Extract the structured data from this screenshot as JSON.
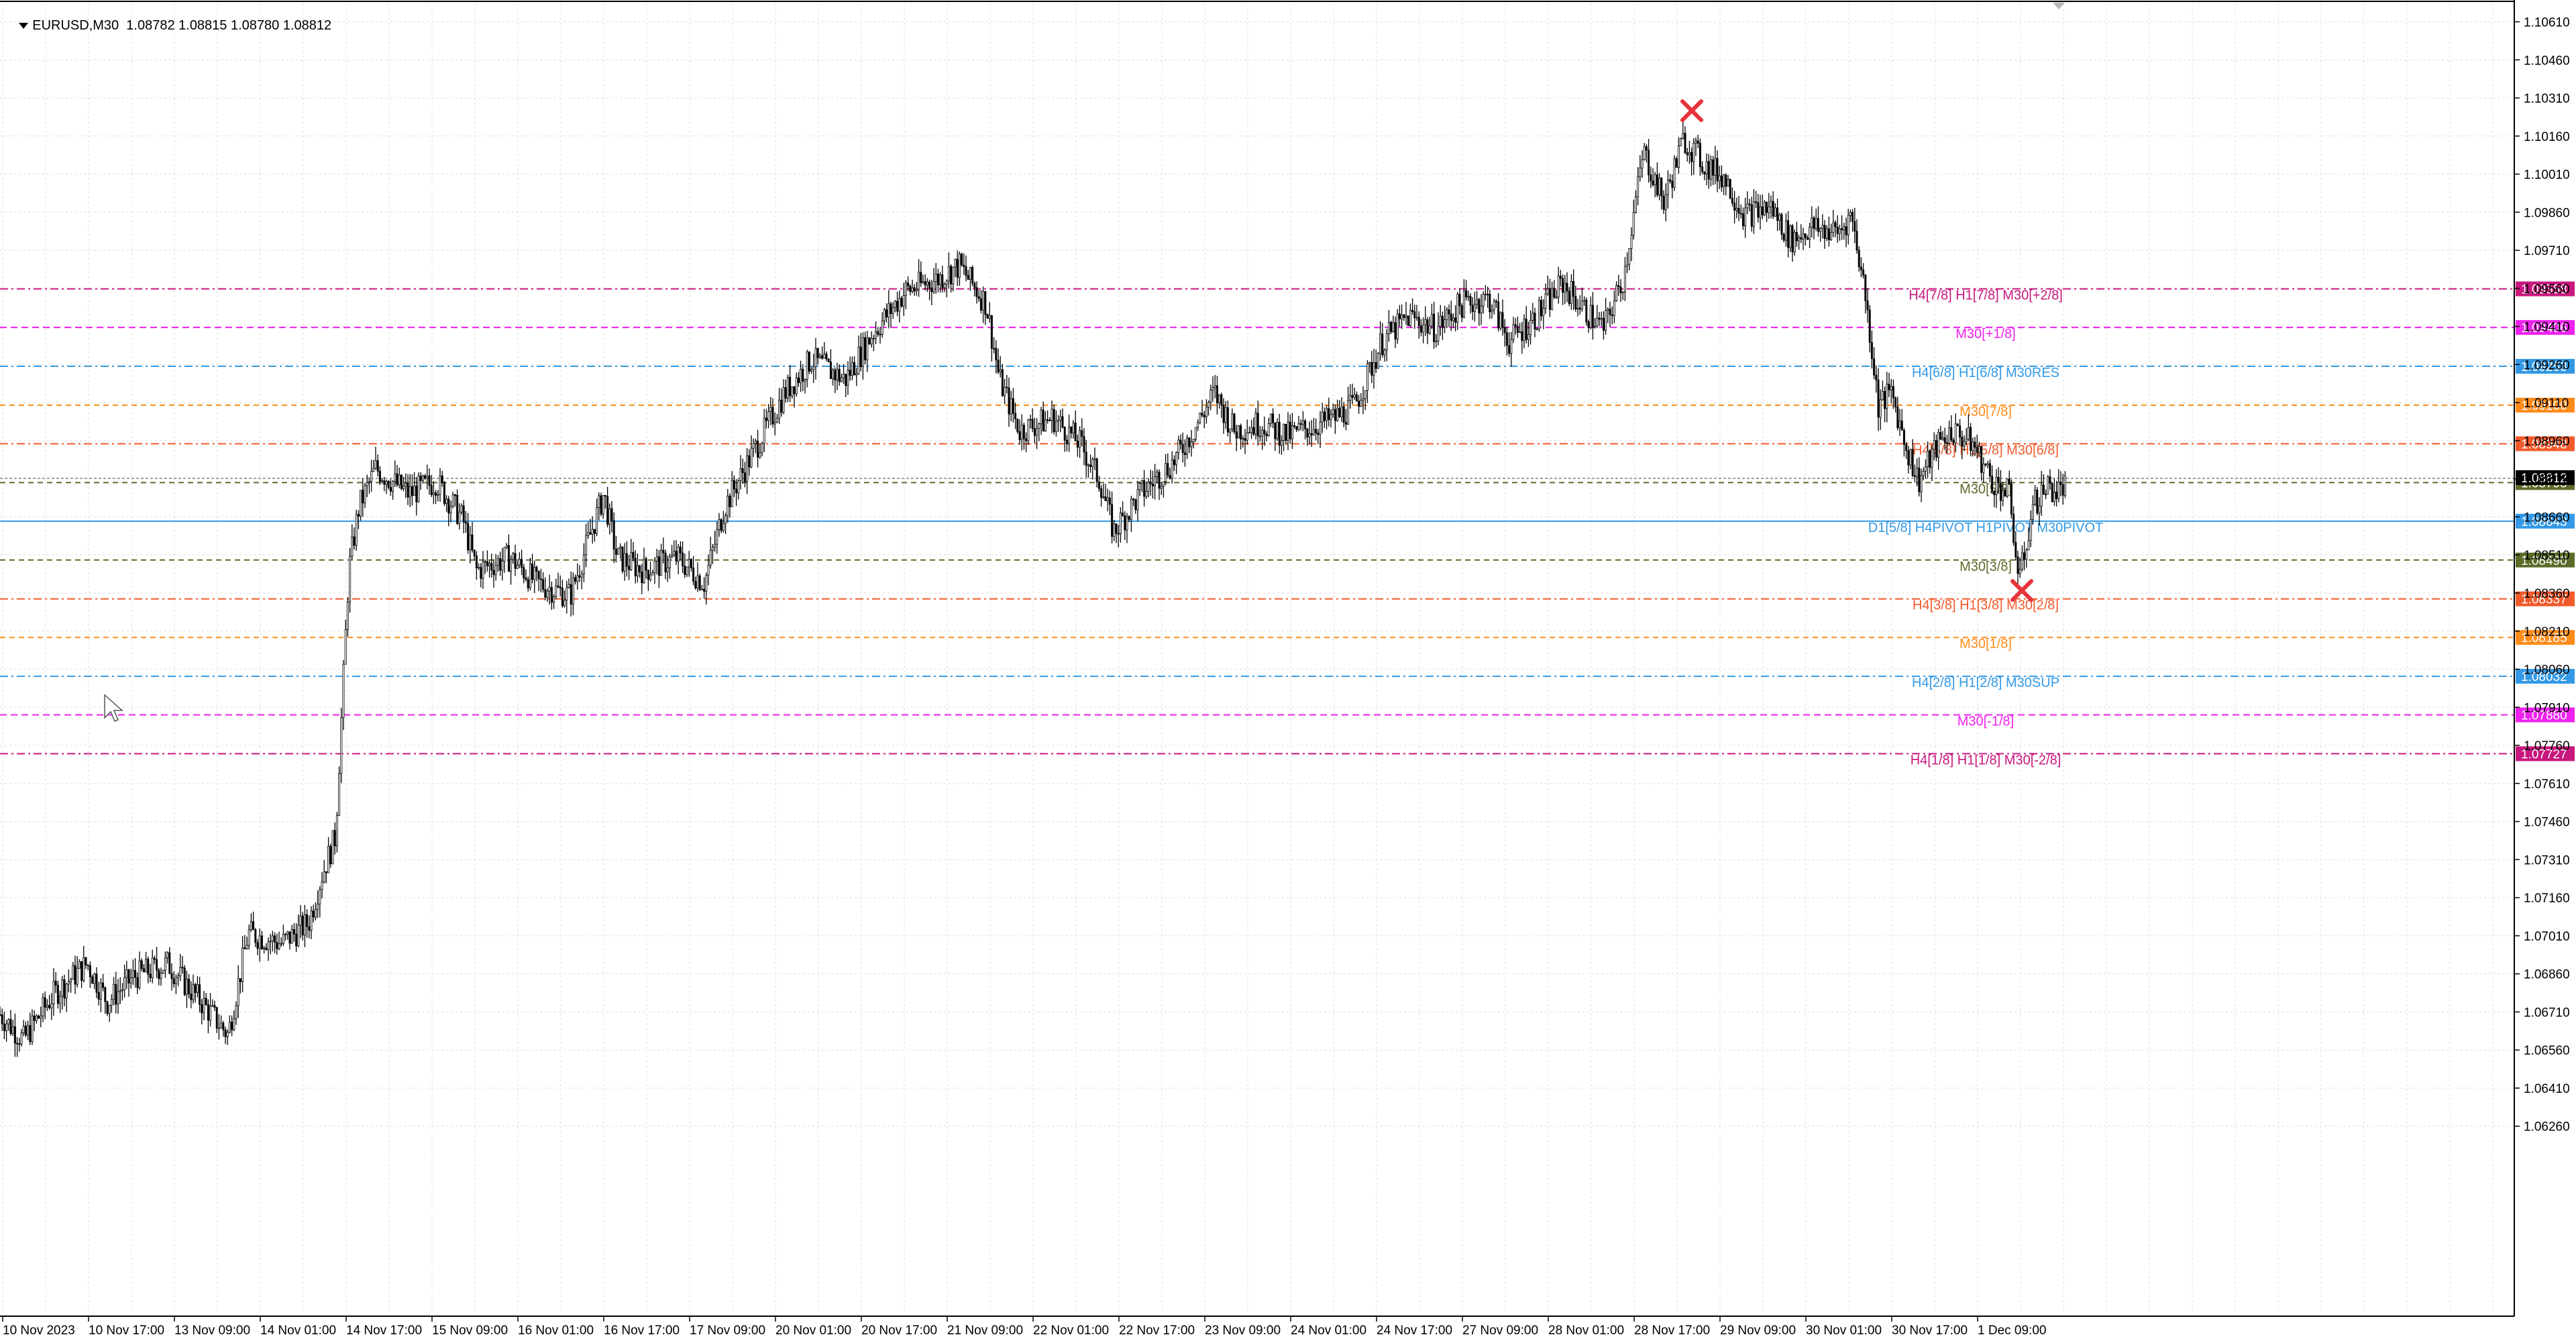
{
  "header": {
    "symbol": "EURUSD,M30",
    "ohlc": "1.08782 1.08815 1.08780 1.08812"
  },
  "chart_data": {
    "type": "candlestick",
    "symbol": "EURUSD",
    "timeframe": "M30",
    "ylim": [
      1.0553,
      1.1068
    ],
    "price_ticks": [
      "1.10610",
      "1.10460",
      "1.10310",
      "1.10160",
      "1.10010",
      "1.09860",
      "1.09710",
      "1.09560",
      "1.09410",
      "1.09260",
      "1.09110",
      "1.08960",
      "1.08810",
      "1.08660",
      "1.08510",
      "1.08360",
      "1.08210",
      "1.08060",
      "1.07910",
      "1.07760",
      "1.07610",
      "1.07460",
      "1.07310",
      "1.07160",
      "1.07010",
      "1.06860",
      "1.06710",
      "1.06560",
      "1.06410",
      "1.06260"
    ],
    "time_labels": [
      "10 Nov 2023",
      "10 Nov 17:00",
      "13 Nov 09:00",
      "14 Nov 01:00",
      "14 Nov 17:00",
      "15 Nov 09:00",
      "16 Nov 01:00",
      "16 Nov 17:00",
      "17 Nov 09:00",
      "20 Nov 01:00",
      "20 Nov 17:00",
      "21 Nov 09:00",
      "22 Nov 01:00",
      "22 Nov 17:00",
      "23 Nov 09:00",
      "24 Nov 01:00",
      "24 Nov 17:00",
      "27 Nov 09:00",
      "28 Nov 01:00",
      "28 Nov 17:00",
      "29 Nov 09:00",
      "30 Nov 01:00",
      "30 Nov 17:00",
      "1 Dec 09:00"
    ],
    "price_path": [
      {
        "t": 0,
        "p": 1.067
      },
      {
        "t": 35,
        "p": 1.066
      },
      {
        "t": 80,
        "p": 1.0678
      },
      {
        "t": 130,
        "p": 1.069
      },
      {
        "t": 160,
        "p": 1.0675
      },
      {
        "t": 200,
        "p": 1.0685
      },
      {
        "t": 250,
        "p": 1.069
      },
      {
        "t": 300,
        "p": 1.0675
      },
      {
        "t": 340,
        "p": 1.0662
      },
      {
        "t": 370,
        "p": 1.0702
      },
      {
        "t": 420,
        "p": 1.0698
      },
      {
        "t": 460,
        "p": 1.0706
      },
      {
        "t": 480,
        "p": 1.0725
      },
      {
        "t": 500,
        "p": 1.074
      },
      {
        "t": 520,
        "p": 1.0845
      },
      {
        "t": 535,
        "p": 1.087
      },
      {
        "t": 560,
        "p": 1.0885
      },
      {
        "t": 610,
        "p": 1.0875
      },
      {
        "t": 650,
        "p": 1.088
      },
      {
        "t": 690,
        "p": 1.0865
      },
      {
        "t": 710,
        "p": 1.0845
      },
      {
        "t": 760,
        "p": 1.085
      },
      {
        "t": 800,
        "p": 1.084
      },
      {
        "t": 850,
        "p": 1.0835
      },
      {
        "t": 900,
        "p": 1.0875
      },
      {
        "t": 920,
        "p": 1.085
      },
      {
        "t": 960,
        "p": 1.0845
      },
      {
        "t": 1010,
        "p": 1.085
      },
      {
        "t": 1050,
        "p": 1.084
      },
      {
        "t": 1080,
        "p": 1.087
      },
      {
        "t": 1120,
        "p": 1.089
      },
      {
        "t": 1170,
        "p": 1.0915
      },
      {
        "t": 1210,
        "p": 1.0928
      },
      {
        "t": 1260,
        "p": 1.092
      },
      {
        "t": 1300,
        "p": 1.0938
      },
      {
        "t": 1350,
        "p": 1.0955
      },
      {
        "t": 1400,
        "p": 1.096
      },
      {
        "t": 1430,
        "p": 1.0965
      },
      {
        "t": 1470,
        "p": 1.095
      },
      {
        "t": 1490,
        "p": 1.092
      },
      {
        "t": 1520,
        "p": 1.09
      },
      {
        "t": 1570,
        "p": 1.0905
      },
      {
        "t": 1610,
        "p": 1.0895
      },
      {
        "t": 1640,
        "p": 1.088
      },
      {
        "t": 1660,
        "p": 1.086
      },
      {
        "t": 1700,
        "p": 1.0875
      },
      {
        "t": 1750,
        "p": 1.0888
      },
      {
        "t": 1790,
        "p": 1.0905
      },
      {
        "t": 1810,
        "p": 1.0915
      },
      {
        "t": 1840,
        "p": 1.09
      },
      {
        "t": 1880,
        "p": 1.0903
      },
      {
        "t": 1920,
        "p": 1.0898
      },
      {
        "t": 1960,
        "p": 1.0902
      },
      {
        "t": 1990,
        "p": 1.0905
      },
      {
        "t": 2020,
        "p": 1.091
      },
      {
        "t": 2060,
        "p": 1.0935
      },
      {
        "t": 2100,
        "p": 1.0945
      },
      {
        "t": 2140,
        "p": 1.094
      },
      {
        "t": 2180,
        "p": 1.095
      },
      {
        "t": 2220,
        "p": 1.0952
      },
      {
        "t": 2250,
        "p": 1.0935
      },
      {
        "t": 2290,
        "p": 1.0945
      },
      {
        "t": 2330,
        "p": 1.0958
      },
      {
        "t": 2360,
        "p": 1.0948
      },
      {
        "t": 2390,
        "p": 1.094
      },
      {
        "t": 2420,
        "p": 1.096
      },
      {
        "t": 2450,
        "p": 1.101
      },
      {
        "t": 2480,
        "p": 1.099
      },
      {
        "t": 2510,
        "p": 1.1015
      },
      {
        "t": 2540,
        "p": 1.1005
      },
      {
        "t": 2570,
        "p": 1.1
      },
      {
        "t": 2600,
        "p": 1.0985
      },
      {
        "t": 2640,
        "p": 1.0988
      },
      {
        "t": 2670,
        "p": 1.0975
      },
      {
        "t": 2700,
        "p": 1.098
      },
      {
        "t": 2740,
        "p": 1.0978
      },
      {
        "t": 2760,
        "p": 1.0985
      },
      {
        "t": 2780,
        "p": 1.0955
      },
      {
        "t": 2800,
        "p": 1.091
      },
      {
        "t": 2820,
        "p": 1.0915
      },
      {
        "t": 2840,
        "p": 1.0895
      },
      {
        "t": 2860,
        "p": 1.088
      },
      {
        "t": 2890,
        "p": 1.0895
      },
      {
        "t": 2910,
        "p": 1.09
      },
      {
        "t": 2940,
        "p": 1.0895
      },
      {
        "t": 2970,
        "p": 1.088
      },
      {
        "t": 2995,
        "p": 1.0875
      },
      {
        "t": 3010,
        "p": 1.084
      },
      {
        "t": 3030,
        "p": 1.087
      },
      {
        "t": 3050,
        "p": 1.0878
      },
      {
        "t": 3070,
        "p": 1.0876
      },
      {
        "t": 3080,
        "p": 1.0879
      }
    ],
    "marker_high": {
      "t": 2522,
      "p": 1.1026
    },
    "marker_low": {
      "t": 3014,
      "p": 1.0837
    },
    "current_price": {
      "value": "1.08812",
      "t": 3080
    },
    "levels": [
      {
        "price": 1.09558,
        "label": "H4[7/8] H1[7/8] M30[+2/8]",
        "price_label": "1.09558",
        "color": "#c8177d",
        "dash": "12,5,3,5"
      },
      {
        "price": 1.09406,
        "label": "M30[+1/8]",
        "price_label": "1.09406",
        "color": "#ee22ee",
        "dash": "10,6"
      },
      {
        "price": 1.09253,
        "label": "H4[6/8] H1[6/8] M30RES",
        "price_label": "1.09253",
        "color": "#3399e6",
        "dash": "12,5,3,5"
      },
      {
        "price": 1.091,
        "label": "M30[7/8]",
        "price_label": "1.09100",
        "color": "#ff8c1a",
        "dash": "8,6"
      },
      {
        "price": 1.08948,
        "label": "H4[5/8] H1[5/8] M30[6/8]",
        "price_label": "1.08948",
        "color": "#f25a2b",
        "dash": "12,5,3,5"
      },
      {
        "price": 1.08795,
        "label": "M30[5/8]",
        "price_label": "1.08795",
        "color": "#5b6b2a",
        "dash": "8,6"
      },
      {
        "price": 1.08643,
        "label": "D1[5/8] H4PIVOT H1PIVOT M30PIVOT",
        "price_label": "1.08643",
        "color": "#3399e6",
        "dash": ""
      },
      {
        "price": 1.0849,
        "label": "M30[3/8]",
        "price_label": "1.08490",
        "color": "#5b6b2a",
        "dash": "8,6"
      },
      {
        "price": 1.08337,
        "label": "H4[3/8] H1[3/8] M30[2/8]",
        "price_label": "1.08337",
        "color": "#f25a2b",
        "dash": "12,5,3,5"
      },
      {
        "price": 1.08185,
        "label": "M30[1/8]",
        "price_label": "1.08185",
        "color": "#ff8c1a",
        "dash": "8,6"
      },
      {
        "price": 1.08032,
        "label": "H4[2/8] H1[2/8] M30SUP",
        "price_label": "1.08032",
        "color": "#3399e6",
        "dash": "12,5,3,5"
      },
      {
        "price": 1.0788,
        "label": "M30[-1/8]",
        "price_label": "1.07880",
        "color": "#ee22ee",
        "dash": "10,6"
      },
      {
        "price": 1.07727,
        "label": "H4[1/8] H1[1/8] M30[-2/8]",
        "price_label": "1.07727",
        "color": "#c8177d",
        "dash": "12,5,3,5"
      }
    ],
    "grid": true,
    "colors": {
      "candle": "#000000",
      "grid": "#dcdcdc",
      "marker": "#e8333a",
      "axis": "#000000",
      "bid_line": "#8a8a8a"
    }
  }
}
